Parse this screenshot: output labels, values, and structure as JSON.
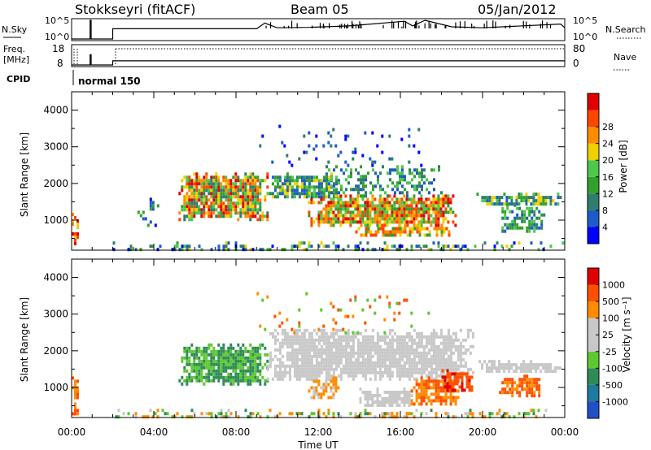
{
  "header": {
    "station": "Stokkseyri (fitACF)",
    "beam": "Beam 05",
    "date": "05/Jan/2012"
  },
  "panels": {
    "nsky_label": "N.Sky",
    "nsky_ticks": [
      "10^5",
      "10^0"
    ],
    "nsearch_label": "N.Search",
    "nsearch_ticks": [
      "10^5",
      "10^0"
    ],
    "freq_label_1": "Freq.",
    "freq_label_2": "[MHz]",
    "freq_ticks": [
      "18",
      "8"
    ],
    "nave_label": "Nave",
    "nave_ticks": [
      "80",
      "0"
    ],
    "cpid_label": "CPID",
    "cpid_value": "normal 150"
  },
  "colors": {
    "power": [
      "#0000ff",
      "#1c5cc8",
      "#2e7d6e",
      "#33a02c",
      "#4cc84c",
      "#f0d000",
      "#ff8c00",
      "#ff4500",
      "#e00000"
    ],
    "velocity": [
      "#2050c8",
      "#1f7aa0",
      "#2e8b57",
      "#5ec832",
      "#c8c8c8",
      "#c8c8c8",
      "#ff8c00",
      "#ff5000",
      "#e00000"
    ]
  },
  "chart_data": [
    {
      "type": "heatmap",
      "id": "power",
      "xlabel": "",
      "ylabel": "Slant Range [km]",
      "xlim_hours": [
        0,
        24
      ],
      "ylim_km": [
        180,
        4500
      ],
      "yticks": [
        "1000",
        "2000",
        "3000",
        "4000"
      ],
      "colorbar_label": "Power [dB]",
      "colorbar_ticks": [
        "4",
        "8",
        "12",
        "16",
        "20",
        "24",
        "28"
      ],
      "regions": [
        {
          "x0": 5.2,
          "x1": 9.5,
          "y0": 1050,
          "y1": 2300,
          "density": 0.9,
          "levels": [
            2,
            3,
            4,
            5,
            6,
            7,
            8
          ]
        },
        {
          "x0": 9.5,
          "x1": 13,
          "y0": 1600,
          "y1": 2300,
          "density": 0.8,
          "levels": [
            1,
            2,
            3,
            4,
            5
          ]
        },
        {
          "x0": 11.5,
          "x1": 18.7,
          "y0": 900,
          "y1": 1700,
          "density": 0.9,
          "levels": [
            3,
            4,
            5,
            6,
            7,
            8
          ]
        },
        {
          "x0": 13.8,
          "x1": 18.5,
          "y0": 550,
          "y1": 900,
          "density": 0.8,
          "levels": [
            3,
            5,
            6,
            7
          ]
        },
        {
          "x0": 12,
          "x1": 18,
          "y0": 1700,
          "y1": 2500,
          "density": 0.4,
          "levels": [
            1,
            2,
            3,
            4
          ]
        },
        {
          "x0": 19.7,
          "x1": 23.8,
          "y0": 1450,
          "y1": 1750,
          "density": 0.85,
          "levels": [
            1,
            2,
            3,
            4,
            5
          ]
        },
        {
          "x0": 20.8,
          "x1": 23,
          "y0": 700,
          "y1": 1450,
          "density": 0.6,
          "levels": [
            1,
            2,
            3,
            4
          ]
        },
        {
          "x0": 3.2,
          "x1": 4.2,
          "y0": 800,
          "y1": 1700,
          "density": 0.15,
          "levels": [
            0,
            1,
            3
          ]
        },
        {
          "x0": 0,
          "x1": 0.3,
          "y0": 300,
          "y1": 1200,
          "density": 0.7,
          "levels": [
            5,
            6,
            7,
            8
          ]
        },
        {
          "x0": 2,
          "x1": 24,
          "y0": 180,
          "y1": 420,
          "density": 0.35,
          "levels": [
            0,
            1,
            2,
            3,
            4,
            5
          ]
        },
        {
          "x0": 9,
          "x1": 17.5,
          "y0": 2500,
          "y1": 3600,
          "density": 0.06,
          "levels": [
            0,
            1,
            2
          ]
        }
      ]
    },
    {
      "type": "heatmap",
      "id": "velocity",
      "xlabel": "Time UT",
      "ylabel": "Slant Range [km]",
      "xlim_hours": [
        0,
        24
      ],
      "xticks": [
        "00:00",
        "04:00",
        "08:00",
        "12:00",
        "16:00",
        "20:00",
        "00:00"
      ],
      "ylim_km": [
        180,
        4500
      ],
      "yticks": [
        "1000",
        "2000",
        "3000",
        "4000"
      ],
      "colorbar_label": "Velocity [m s⁻¹]",
      "colorbar_ticks": [
        "1000",
        "500",
        "100",
        "25",
        "-25",
        "-100",
        "-500",
        "-1000"
      ],
      "regions": [
        {
          "x0": 5.2,
          "x1": 9.5,
          "y0": 1100,
          "y1": 2200,
          "density": 0.9,
          "levels": [
            2,
            3,
            3,
            2
          ]
        },
        {
          "x0": 9.5,
          "x1": 19.5,
          "y0": 1200,
          "y1": 2600,
          "density": 0.85,
          "levels": [
            4,
            4,
            4,
            5
          ]
        },
        {
          "x0": 11.5,
          "x1": 13,
          "y0": 700,
          "y1": 1300,
          "density": 0.7,
          "levels": [
            6,
            6,
            5
          ]
        },
        {
          "x0": 14,
          "x1": 16.5,
          "y0": 500,
          "y1": 1000,
          "density": 0.8,
          "levels": [
            4,
            4,
            5
          ]
        },
        {
          "x0": 16.5,
          "x1": 18.8,
          "y0": 550,
          "y1": 1300,
          "density": 0.85,
          "levels": [
            6,
            7,
            6
          ]
        },
        {
          "x0": 18,
          "x1": 19.5,
          "y0": 900,
          "y1": 1500,
          "density": 0.8,
          "levels": [
            7,
            8,
            7
          ]
        },
        {
          "x0": 19.8,
          "x1": 23.8,
          "y0": 1450,
          "y1": 1750,
          "density": 0.85,
          "levels": [
            4,
            4,
            5
          ]
        },
        {
          "x0": 20.8,
          "x1": 22.8,
          "y0": 800,
          "y1": 1350,
          "density": 0.8,
          "levels": [
            6,
            7,
            7
          ]
        },
        {
          "x0": 0,
          "x1": 0.3,
          "y0": 300,
          "y1": 1300,
          "density": 0.7,
          "levels": [
            6,
            7,
            6
          ]
        },
        {
          "x0": 2,
          "x1": 24,
          "y0": 180,
          "y1": 420,
          "density": 0.35,
          "levels": [
            2,
            3,
            5,
            6,
            6
          ]
        },
        {
          "x0": 9,
          "x1": 17.5,
          "y0": 2500,
          "y1": 3600,
          "density": 0.06,
          "levels": [
            3,
            6,
            7
          ]
        }
      ]
    },
    {
      "type": "line",
      "id": "nsky",
      "series": [
        {
          "x": [
            0,
            0.9,
            0.9,
            0.95,
            0.95,
            2.0,
            2.0,
            9.0,
            9.4,
            10.0,
            11.5,
            13.5,
            16.2,
            16.6,
            17.2,
            18.5,
            20.0,
            23.8,
            24
          ],
          "y": [
            0,
            0,
            1,
            1,
            0,
            0,
            0.55,
            0.55,
            0.85,
            0.6,
            0.62,
            0.7,
            0.95,
            0.7,
            1.0,
            0.65,
            0.6,
            0.8,
            0.6
          ]
        }
      ]
    },
    {
      "type": "line",
      "id": "nave",
      "series": [
        {
          "x": [
            0,
            0.9,
            0.9,
            0.95,
            0.95,
            2.0,
            2.0,
            24
          ],
          "y": [
            0,
            0,
            0.55,
            0.55,
            0,
            0,
            0.22,
            0.22
          ]
        }
      ]
    }
  ]
}
